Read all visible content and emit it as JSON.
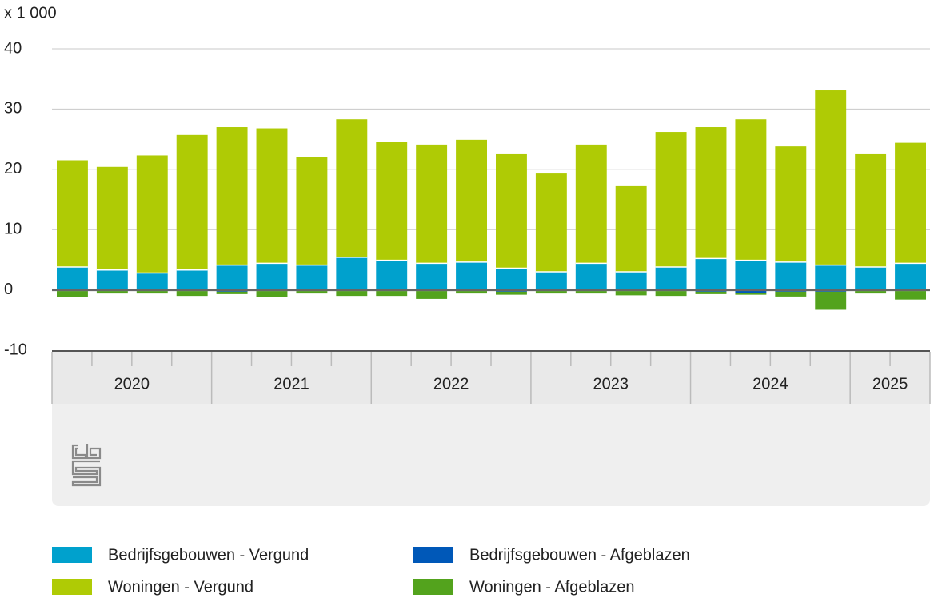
{
  "chart_data": {
    "type": "stacked-bar",
    "y_unit_label": "x 1 000",
    "category_groups": [
      {
        "label": "2020",
        "categories": [
          null,
          null,
          null,
          null
        ]
      },
      {
        "label": "2021",
        "categories": [
          null,
          null,
          null,
          null
        ]
      },
      {
        "label": "2022",
        "categories": [
          null,
          null,
          null,
          null
        ]
      },
      {
        "label": "2023",
        "categories": [
          null,
          null,
          null,
          null
        ]
      },
      {
        "label": "2024",
        "categories": [
          null,
          null,
          null,
          null
        ]
      },
      {
        "label": "2025",
        "categories": [
          null,
          null
        ]
      }
    ],
    "series": [
      {
        "name": "Bedrijfsgebouwen - Vergund",
        "color": "#00a1cd",
        "values": [
          3.8,
          3.3,
          2.8,
          3.3,
          4.1,
          4.4,
          4.1,
          5.4,
          4.9,
          4.4,
          4.6,
          3.6,
          3.0,
          4.4,
          3.0,
          3.8,
          5.2,
          4.9,
          4.6,
          4.1,
          3.8,
          4.4
        ]
      },
      {
        "name": "Woningen - Vergund",
        "color": "#afcb05",
        "values": [
          17.7,
          17.1,
          19.5,
          22.4,
          22.9,
          22.4,
          17.9,
          22.9,
          19.7,
          19.7,
          20.3,
          18.9,
          16.3,
          19.7,
          14.2,
          22.4,
          21.8,
          23.4,
          19.2,
          29.0,
          18.7,
          20.0
        ]
      },
      {
        "name": "Bedrijfsgebouwen - Afgeblazen",
        "color": "#0058b8",
        "values": [
          -0.2,
          -0.2,
          -0.2,
          -0.2,
          -0.3,
          -0.2,
          -0.2,
          -0.2,
          -0.2,
          -0.2,
          -0.2,
          -0.3,
          -0.2,
          -0.2,
          -0.2,
          -0.2,
          -0.3,
          -0.5,
          -0.3,
          -0.3,
          -0.2,
          -0.2
        ]
      },
      {
        "name": "Woningen - Afgeblazen",
        "color": "#53a31d",
        "values": [
          -1.0,
          -0.4,
          -0.4,
          -0.8,
          -0.4,
          -1.0,
          -0.4,
          -0.8,
          -0.8,
          -1.3,
          -0.4,
          -0.5,
          -0.4,
          -0.4,
          -0.7,
          -0.8,
          -0.4,
          -0.3,
          -0.8,
          -3.0,
          -0.4,
          -1.4
        ]
      }
    ],
    "ylim": [
      -10,
      40
    ],
    "yticks": [
      -10,
      0,
      10,
      20,
      30,
      40
    ],
    "grid": true
  }
}
